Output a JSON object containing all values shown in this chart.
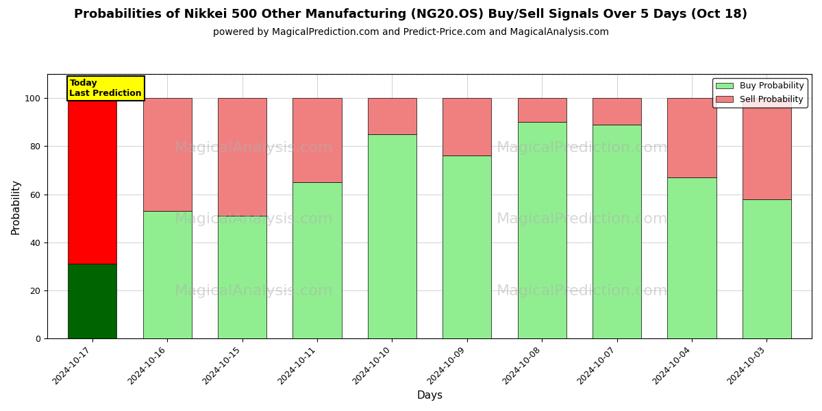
{
  "title": "Probabilities of Nikkei 500 Other Manufacturing (NG20.OS) Buy/Sell Signals Over 5 Days (Oct 18)",
  "subtitle": "powered by MagicalPrediction.com and Predict-Price.com and MagicalAnalysis.com",
  "xlabel": "Days",
  "ylabel": "Probability",
  "categories": [
    "2024-10-17",
    "2024-10-16",
    "2024-10-15",
    "2024-10-11",
    "2024-10-10",
    "2024-10-09",
    "2024-10-08",
    "2024-10-07",
    "2024-10-04",
    "2024-10-03"
  ],
  "buy_values": [
    31,
    53,
    51,
    65,
    85,
    76,
    90,
    89,
    67,
    58
  ],
  "sell_values": [
    69,
    47,
    49,
    35,
    15,
    24,
    10,
    11,
    33,
    42
  ],
  "today_index": 0,
  "buy_color_today": "#006400",
  "sell_color_today": "#FF0000",
  "buy_color_normal": "#90EE90",
  "sell_color_normal": "#F08080",
  "today_label_bg": "#FFFF00",
  "ylim": [
    0,
    110
  ],
  "dashed_line_y": 110,
  "legend_buy": "Buy Probability",
  "legend_sell": "Sell Probability",
  "bar_width": 0.65,
  "title_fontsize": 13,
  "subtitle_fontsize": 10,
  "axis_label_fontsize": 11,
  "tick_fontsize": 9
}
